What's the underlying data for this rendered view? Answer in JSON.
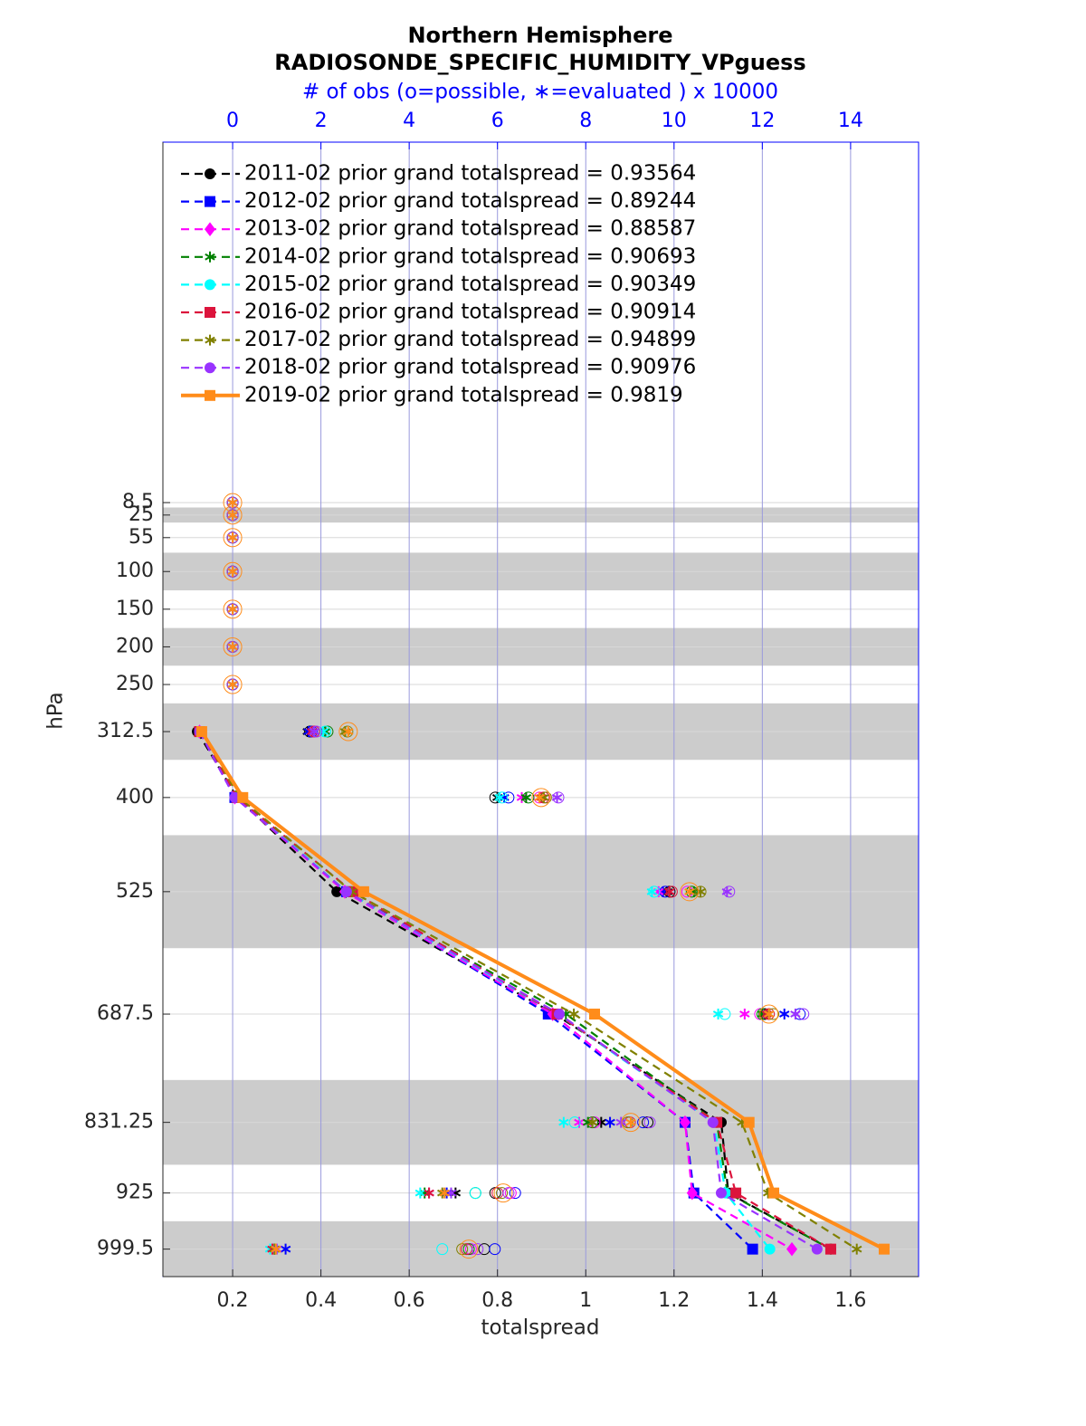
{
  "chart_data": {
    "type": "line",
    "title": "Northern Hemisphere",
    "subtitle": "RADIOSONDE_SPECIFIC_HUMIDITY_VPguess",
    "x2label": "# of obs (o=possible, ∗=evaluated ) x 10000",
    "xlabel": "totalspread",
    "ylabel": "hPa",
    "y": [
      8.5,
      25,
      55,
      100,
      150,
      200,
      250,
      312.5,
      400,
      525,
      687.5,
      831.25,
      925,
      999.5
    ],
    "ylim": [
      1036,
      -470
    ],
    "yticks": [
      8.5,
      25,
      55,
      100,
      150,
      200,
      250,
      312.5,
      400,
      525,
      687.5,
      831.25,
      925,
      999.5
    ],
    "xlim": [
      0.042,
      1.754
    ],
    "xticks": [
      0.2,
      0.4,
      0.6,
      0.8,
      1,
      1.2,
      1.4,
      1.6
    ],
    "x2lim": [
      -1.58,
      15.54
    ],
    "x2ticks": [
      0,
      2,
      4,
      6,
      8,
      10,
      12,
      14
    ],
    "layer_bands": [
      [
        15,
        35
      ],
      [
        75,
        125
      ],
      [
        175,
        225
      ],
      [
        275,
        350
      ],
      [
        450,
        600
      ],
      [
        775,
        887.5
      ],
      [
        962.5,
        1037.5
      ]
    ],
    "grid": true,
    "legend": "upper left",
    "series": [
      {
        "name": "2011-02 prior grand totalspread = 0.93564",
        "color": "#000000",
        "marker": "circle",
        "dashed": true,
        "values": [
          null,
          null,
          null,
          null,
          null,
          null,
          null,
          0.12,
          0.21,
          0.436,
          0.93,
          1.307,
          1.323,
          1.555
        ],
        "obs_evaluated": [
          0,
          0,
          0,
          0,
          0,
          0,
          0,
          1.7,
          6.0,
          9.85,
          12.05,
          8.35,
          5.05,
          0.95
        ],
        "obs_possible": [
          0,
          0,
          0,
          0,
          0,
          0,
          0,
          1.75,
          5.95,
          9.9,
          12.05,
          9.4,
          5.95,
          5.7
        ]
      },
      {
        "name": "2012-02 prior grand totalspread = 0.89244",
        "color": "#0000ff",
        "marker": "square",
        "dashed": true,
        "values": [
          null,
          null,
          null,
          null,
          null,
          null,
          null,
          0.125,
          0.205,
          0.458,
          0.915,
          1.225,
          1.245,
          1.378
        ],
        "obs_evaluated": [
          0,
          0,
          0,
          0,
          0,
          0,
          0,
          1.72,
          6.15,
          9.75,
          12.5,
          8.55,
          4.85,
          1.2
        ],
        "obs_possible": [
          0,
          0,
          0,
          0,
          0,
          0,
          0,
          1.8,
          6.25,
          9.8,
          12.85,
          9.3,
          6.4,
          5.94
        ]
      },
      {
        "name": "2013-02 prior grand totalspread = 0.88587",
        "color": "#ff00ff",
        "marker": "diamond",
        "dashed": true,
        "values": [
          null,
          null,
          null,
          null,
          null,
          null,
          null,
          0.125,
          0.205,
          0.454,
          0.925,
          1.225,
          1.241,
          1.467
        ],
        "obs_evaluated": [
          0,
          0,
          0,
          0,
          0,
          0,
          0,
          1.8,
          6.55,
          9.65,
          11.6,
          7.85,
          4.45,
          0.9
        ],
        "obs_possible": [
          0,
          0,
          0,
          0,
          0,
          0,
          0,
          1.85,
          6.95,
          10.3,
          11.95,
          8.2,
          6.3,
          5.4
        ]
      },
      {
        "name": "2014-02 prior grand totalspread = 0.90693",
        "color": "#008000",
        "marker": "asterisk",
        "dashed": true,
        "values": [
          null,
          null,
          null,
          null,
          null,
          null,
          null,
          0.125,
          0.21,
          0.458,
          0.955,
          1.297,
          1.321,
          1.555
        ],
        "obs_evaluated": [
          0,
          0,
          0,
          0,
          0,
          0,
          0,
          2.1,
          6.65,
          10.45,
          12.0,
          8.05,
          4.35,
          0.95
        ],
        "obs_possible": [
          0,
          0,
          0,
          0,
          0,
          0,
          0,
          2.15,
          6.7,
          10.4,
          12.0,
          8.15,
          5.5,
          5.35
        ]
      },
      {
        "name": "2015-02 prior grand totalspread = 0.90349",
        "color": "#00ffff",
        "marker": "circle",
        "dashed": true,
        "values": [
          null,
          null,
          null,
          null,
          null,
          null,
          null,
          0.125,
          0.21,
          0.458,
          0.935,
          1.29,
          1.317,
          1.417
        ],
        "obs_evaluated": [
          0,
          0,
          0,
          0,
          0,
          0,
          0,
          2.05,
          6.05,
          9.5,
          11.0,
          7.5,
          4.25,
          0.85
        ],
        "obs_possible": [
          0,
          0,
          0,
          0,
          0,
          0,
          0,
          2.1,
          6.1,
          9.55,
          11.15,
          7.75,
          5.5,
          4.75
        ]
      },
      {
        "name": "2016-02 prior grand totalspread = 0.90914",
        "color": "#dc143c",
        "marker": "square",
        "dashed": true,
        "values": [
          null,
          null,
          null,
          null,
          null,
          null,
          null,
          0.125,
          0.21,
          0.472,
          0.935,
          1.297,
          1.34,
          1.555
        ],
        "obs_evaluated": [
          0,
          0,
          0,
          0,
          0,
          0,
          0,
          1.8,
          7.0,
          9.9,
          12.1,
          8.15,
          4.45,
          0.9
        ],
        "obs_possible": [
          0,
          0,
          0,
          0,
          0,
          0,
          0,
          1.85,
          7.05,
          9.95,
          12.15,
          9.0,
          6.0,
          5.3
        ]
      },
      {
        "name": "2017-02 prior grand totalspread = 0.94899",
        "color": "#808000",
        "marker": "asterisk",
        "dashed": true,
        "values": [
          null,
          null,
          null,
          null,
          null,
          null,
          null,
          0.13,
          0.215,
          0.47,
          0.973,
          1.354,
          1.413,
          1.614
        ],
        "obs_evaluated": [
          0,
          0,
          0,
          0,
          0,
          0,
          0,
          2.55,
          7.05,
          10.6,
          12.15,
          8.15,
          4.75,
          0.95
        ],
        "obs_possible": [
          0,
          0,
          0,
          0,
          0,
          0,
          0,
          2.6,
          7.1,
          10.6,
          12.25,
          8.95,
          6.1,
          5.2
        ]
      },
      {
        "name": "2018-02 prior grand totalspread = 0.90976",
        "color": "#9933ff",
        "marker": "circle",
        "dashed": true,
        "values": [
          null,
          null,
          null,
          null,
          null,
          null,
          null,
          0.125,
          0.205,
          0.458,
          0.94,
          1.288,
          1.307,
          1.524
        ],
        "obs_evaluated": [
          0,
          0,
          0,
          0,
          0,
          0,
          0,
          1.85,
          7.35,
          11.2,
          12.75,
          8.8,
          4.95,
          1.0
        ],
        "obs_possible": [
          0,
          0,
          0,
          0,
          0,
          0,
          0,
          1.9,
          7.38,
          11.25,
          12.93,
          9.45,
          6.25,
          5.55
        ]
      },
      {
        "name": "2019-02 prior grand totalspread = 0.9819",
        "color": "#ff8c1a",
        "marker": "square",
        "dashed": false,
        "values": [
          null,
          null,
          null,
          null,
          null,
          null,
          null,
          0.13,
          0.223,
          0.497,
          1.02,
          1.37,
          1.426,
          1.676
        ],
        "obs_evaluated": [
          0,
          0,
          0,
          0,
          0,
          0,
          0,
          2.62,
          6.95,
          10.35,
          12.15,
          9.02,
          4.8,
          0.98
        ],
        "obs_possible": [
          0,
          0,
          0,
          0,
          0,
          0,
          0,
          2.62,
          6.99,
          10.35,
          12.15,
          9.02,
          6.13,
          5.35
        ]
      }
    ]
  }
}
